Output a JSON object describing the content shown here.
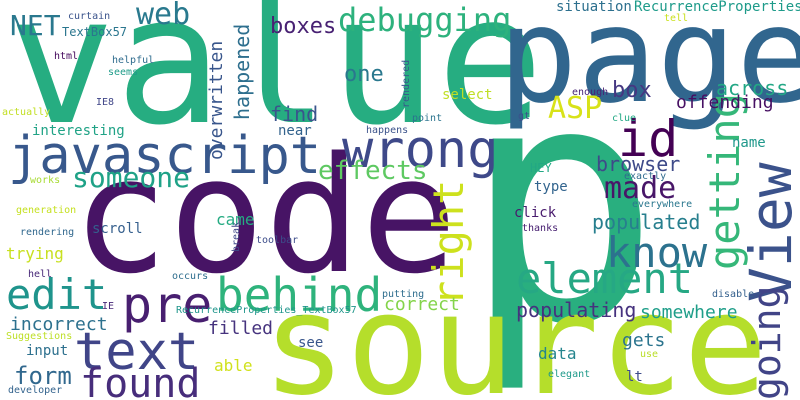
{
  "words": [
    {
      "text": "value",
      "color": "#26ad81"
    },
    {
      "text": "page",
      "color": "#31668e"
    },
    {
      "text": "p",
      "color": "#29af7f"
    },
    {
      "text": "code",
      "color": "#471465"
    },
    {
      "text": "source",
      "color": "#b5de2b"
    },
    {
      "text": "javascript",
      "color": "#38588c"
    },
    {
      "text": "wrong",
      "color": "#3e4989"
    },
    {
      "text": "text",
      "color": "#404588"
    },
    {
      "text": "pre",
      "color": "#481f70"
    },
    {
      "text": "behind",
      "color": "#2eb37c"
    },
    {
      "text": "found",
      "color": "#472d7b"
    },
    {
      "text": "edit",
      "color": "#1f948c"
    },
    {
      "text": "element",
      "color": "#26a884"
    },
    {
      "text": "know",
      "color": "#2c728e"
    },
    {
      "text": "id",
      "color": "#440154"
    },
    {
      "text": "View",
      "color": "#3b528b"
    },
    {
      "text": "getting",
      "color": "#35b779"
    },
    {
      "text": "going",
      "color": "#414487"
    },
    {
      "text": "right",
      "color": "#cde11d"
    },
    {
      "text": "debugging",
      "color": "#2db27d"
    },
    {
      "text": "web",
      "color": "#29798e"
    },
    {
      "text": "ASP",
      "color": "#d8e219"
    },
    {
      "text": "NET",
      "color": "#2a788e"
    },
    {
      "text": "made",
      "color": "#481668"
    },
    {
      "text": "someone",
      "color": "#1fa287"
    },
    {
      "text": "effects",
      "color": "#5ec962"
    },
    {
      "text": "form",
      "color": "#31688e"
    },
    {
      "text": "boxes",
      "color": "#482173"
    },
    {
      "text": "find",
      "color": "#3a548c"
    },
    {
      "text": "one",
      "color": "#2a788e"
    },
    {
      "text": "happened",
      "color": "#2e6f8e"
    },
    {
      "text": "overwritten",
      "color": "#39568c"
    },
    {
      "text": "box",
      "color": "#453781"
    },
    {
      "text": "across",
      "color": "#22a785"
    },
    {
      "text": "offending",
      "color": "#471063"
    },
    {
      "text": "populated",
      "color": "#277f8e"
    },
    {
      "text": "populating",
      "color": "#46327e"
    },
    {
      "text": "browser",
      "color": "#3e4a89"
    },
    {
      "text": "correct",
      "color": "#84d44b"
    },
    {
      "text": "somewhere",
      "color": "#1f9e89"
    },
    {
      "text": "incorrect",
      "color": "#2d718e"
    },
    {
      "text": "filled",
      "color": "#46337e"
    },
    {
      "text": "gets",
      "color": "#2b748e"
    },
    {
      "text": "data",
      "color": "#25858e"
    },
    {
      "text": "able",
      "color": "#d0e11c"
    },
    {
      "text": "trying",
      "color": "#c8e020"
    },
    {
      "text": "came",
      "color": "#25ab82"
    },
    {
      "text": "interesting",
      "color": "#20a386"
    },
    {
      "text": "near",
      "color": "#33638d"
    },
    {
      "text": "select",
      "color": "#c0df25"
    },
    {
      "text": "situation",
      "color": "#2d708e"
    },
    {
      "text": "RecurrenceProperties",
      "color": "#1e9b8a"
    },
    {
      "text": "TextBox57",
      "color": "#2a768e"
    },
    {
      "text": "curtain",
      "color": "#3a538b"
    },
    {
      "text": "html",
      "color": "#460a5d"
    },
    {
      "text": "helpful",
      "color": "#2f6c8e"
    },
    {
      "text": "seems",
      "color": "#1e9c89"
    },
    {
      "text": "IE8",
      "color": "#404688"
    },
    {
      "text": "actually",
      "color": "#c2df23"
    },
    {
      "text": "rendered",
      "color": "#39558c"
    },
    {
      "text": "enough",
      "color": "#482475"
    },
    {
      "text": "tell",
      "color": "#cae11f"
    },
    {
      "text": "gt",
      "color": "#3b518b"
    },
    {
      "text": "point",
      "color": "#2b748e"
    },
    {
      "text": "happens",
      "color": "#3b528b"
    },
    {
      "text": "clue",
      "color": "#22a884"
    },
    {
      "text": "works",
      "color": "#a8db34"
    },
    {
      "text": "HEY",
      "color": "#22a884"
    },
    {
      "text": "exactly",
      "color": "#2f6b8e"
    },
    {
      "text": "everywhere",
      "color": "#2a778e"
    },
    {
      "text": "type",
      "color": "#32648e"
    },
    {
      "text": "click",
      "color": "#481b6d"
    },
    {
      "text": "thanks",
      "color": "#482071"
    },
    {
      "text": "scroll",
      "color": "#355f8d"
    },
    {
      "text": "name",
      "color": "#1f988b"
    },
    {
      "text": "generation",
      "color": "#c5e021"
    },
    {
      "text": "rendering",
      "color": "#31688e"
    },
    {
      "text": "break",
      "color": "#3f4889"
    },
    {
      "text": "toolbar",
      "color": "#3d4d8a"
    },
    {
      "text": "hell",
      "color": "#482979"
    },
    {
      "text": "occurs",
      "color": "#2e6e8e"
    },
    {
      "text": "IE",
      "color": "#482878"
    },
    {
      "text": "RecurrenceProperties_TextBox57",
      "color": "#1f958b"
    },
    {
      "text": "putting",
      "color": "#2e6d8e"
    },
    {
      "text": "disable",
      "color": "#34608d"
    },
    {
      "text": "input",
      "color": "#2d708e"
    },
    {
      "text": "Suggestions",
      "color": "#bddf26"
    },
    {
      "text": "see",
      "color": "#39568c"
    },
    {
      "text": "use",
      "color": "#bade28"
    },
    {
      "text": "lt",
      "color": "#3e4c8a"
    },
    {
      "text": "elegant",
      "color": "#1f9a8a"
    },
    {
      "text": "developer",
      "color": "#33638d"
    }
  ]
}
